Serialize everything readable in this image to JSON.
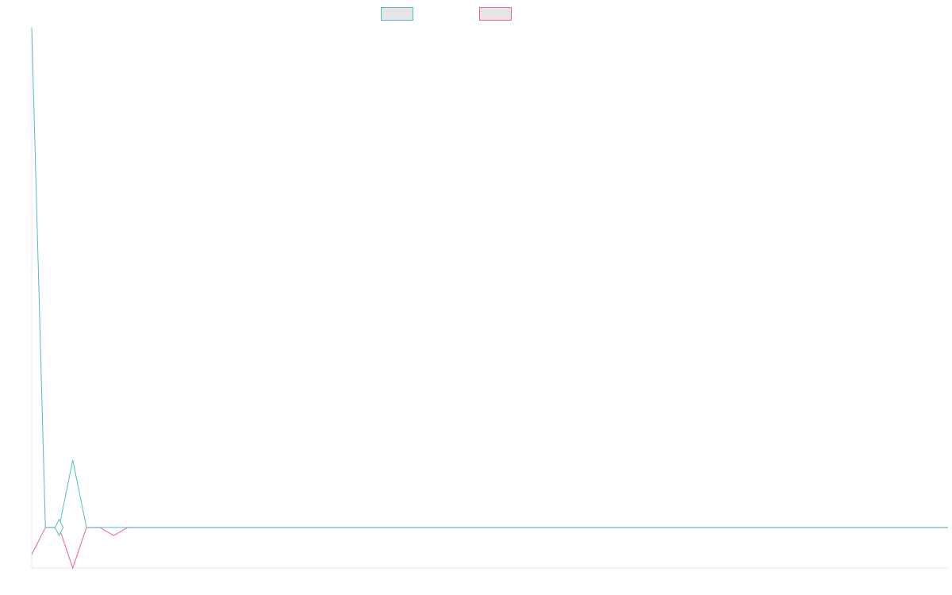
{
  "chart_data": {
    "type": "line",
    "title": "",
    "xlabel": "",
    "ylabel": "",
    "legend_position": "top-center",
    "grid": false,
    "xlim": [
      0,
      67
    ],
    "ylim": [
      -15,
      185
    ],
    "x": [
      0,
      1,
      2,
      3,
      4,
      5,
      6,
      7,
      8,
      9,
      10,
      11,
      12,
      13,
      14,
      15,
      16,
      17,
      18,
      19,
      20,
      21,
      22,
      23,
      24,
      25,
      26,
      27,
      28,
      29,
      30,
      31,
      32,
      33,
      34,
      35,
      36,
      37,
      38,
      39,
      40,
      41,
      42,
      43,
      44,
      45,
      46,
      47,
      48,
      49,
      50,
      51,
      52,
      53,
      54,
      55,
      56,
      57,
      58,
      59,
      60,
      61,
      62,
      63,
      64,
      65,
      66,
      67
    ],
    "series": [
      {
        "color": "#4bbfc6",
        "legend_fill": "#e5e5e5",
        "values": [
          185,
          0,
          0,
          25,
          0,
          0,
          0,
          0,
          0,
          0,
          0,
          0,
          0,
          0,
          0,
          0,
          0,
          0,
          0,
          0,
          0,
          0,
          0,
          0,
          0,
          0,
          0,
          0,
          0,
          0,
          0,
          0,
          0,
          0,
          0,
          0,
          0,
          0,
          0,
          0,
          0,
          0,
          0,
          0,
          0,
          0,
          0,
          0,
          0,
          0,
          0,
          0,
          0,
          0,
          0,
          0,
          0,
          0,
          0,
          0,
          0,
          0,
          0,
          0,
          0,
          0,
          0,
          0
        ]
      },
      {
        "color": "#f0628c",
        "legend_fill": "#e5e5e5",
        "values": [
          -10,
          0,
          0,
          -15,
          0,
          0,
          -3,
          0,
          0,
          0,
          0,
          0,
          0,
          0,
          0,
          0,
          0,
          0,
          0,
          0,
          0,
          0,
          0,
          0,
          0,
          0,
          0,
          0,
          0,
          0,
          0,
          0,
          0,
          0,
          0,
          0,
          0,
          0,
          0,
          0,
          0,
          0,
          0,
          0,
          0,
          0,
          0,
          0,
          0,
          0,
          0,
          0,
          0,
          0,
          0,
          0,
          0,
          0,
          0,
          0,
          0,
          0,
          0,
          0,
          0,
          0,
          0,
          0
        ]
      }
    ],
    "highlight": {
      "series": 0,
      "x": 2,
      "upper": 3,
      "lower": -3
    }
  }
}
